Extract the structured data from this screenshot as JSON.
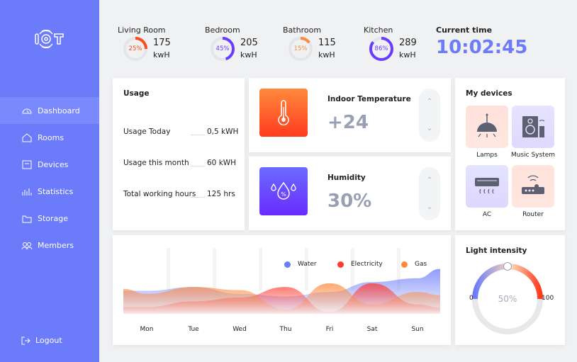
{
  "sidebar": {
    "logo": "IOT",
    "items": [
      {
        "label": "Dashboard",
        "icon": "dashboard-icon",
        "active": true
      },
      {
        "label": "Rooms",
        "icon": "home-icon"
      },
      {
        "label": "Devices",
        "icon": "devices-icon"
      },
      {
        "label": "Statistics",
        "icon": "statistics-icon"
      },
      {
        "label": "Storage",
        "icon": "folder-icon"
      },
      {
        "label": "Members",
        "icon": "members-icon"
      }
    ],
    "logout": "Logout"
  },
  "rooms": [
    {
      "name": "Living Room",
      "percent": 25,
      "pct_label": "25%",
      "value": "175",
      "unit": "kwH",
      "color": "#ff4a1c"
    },
    {
      "name": "Bedroom",
      "percent": 45,
      "pct_label": "45%",
      "value": "205",
      "unit": "kwH",
      "color": "#6a3cff"
    },
    {
      "name": "Bathroom",
      "percent": 15,
      "pct_label": "15%",
      "value": "115",
      "unit": "kwH",
      "color": "#ff8a3d"
    },
    {
      "name": "Kitchen",
      "percent": 86,
      "pct_label": "86%",
      "value": "289",
      "unit": "kwH",
      "color": "#6a3cff"
    }
  ],
  "time": {
    "label": "Current time",
    "value": "10:02:45"
  },
  "usage": {
    "title": "Usage",
    "rows": [
      {
        "label": "Usage Today",
        "value": "0,5 kWH"
      },
      {
        "label": "Usage this month",
        "value": "60 kWH"
      },
      {
        "label": "Total working hours",
        "value": "125 hrs"
      }
    ]
  },
  "temperature": {
    "title": "Indoor Temperature",
    "value": "+24"
  },
  "humidity": {
    "title": "Humidity",
    "value": "30%"
  },
  "devices": {
    "title": "My devices",
    "items": [
      {
        "label": "Lamps",
        "icon": "lamp-icon"
      },
      {
        "label": "Music System",
        "icon": "speaker-icon"
      },
      {
        "label": "AC",
        "icon": "ac-icon"
      },
      {
        "label": "Router",
        "icon": "router-icon"
      }
    ]
  },
  "light": {
    "title": "Light intensity",
    "value": 50,
    "value_label": "50%",
    "min": "0",
    "max": "100"
  },
  "chart_data": {
    "type": "area",
    "categories": [
      "Mon",
      "Tue",
      "Wed",
      "Thu",
      "Fri",
      "Sat",
      "Sun"
    ],
    "series": [
      {
        "name": "Water",
        "color": "#6b7bfa",
        "values": [
          37,
          43,
          32,
          28,
          35,
          51,
          57
        ]
      },
      {
        "name": "Electricity",
        "color": "#ff3b2f",
        "values": [
          11,
          20,
          26,
          43,
          3,
          49,
          15
        ]
      },
      {
        "name": "Gas",
        "color": "#ff8a3d",
        "values": [
          32,
          43,
          38,
          7,
          49,
          15,
          35
        ]
      }
    ],
    "legend": "top-right",
    "grid": false
  }
}
